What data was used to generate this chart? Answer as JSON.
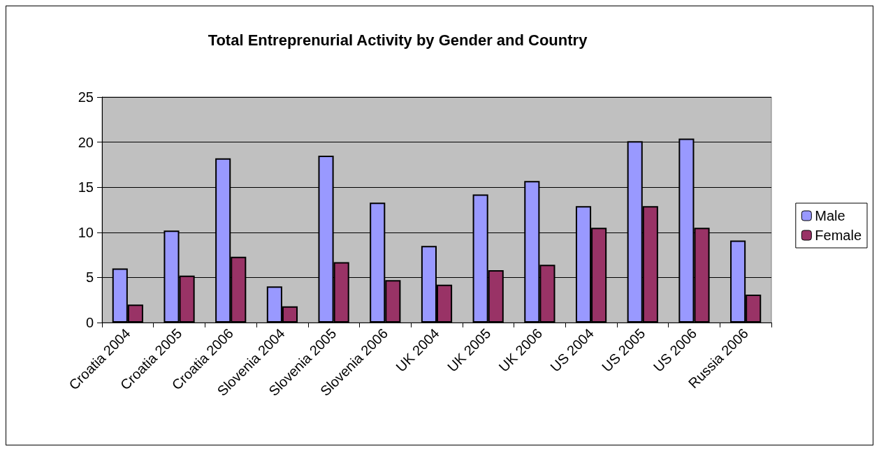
{
  "chart_data": {
    "type": "bar",
    "title": "Total Entreprenurial Activity by Gender and Country",
    "categories": [
      "Croatia 2004",
      "Croatia 2005",
      "Croatia 2006",
      "Slovenia 2004",
      "Slovenia 2005",
      "Slovenia 2006",
      "UK 2004",
      "UK 2005",
      "UK 2006",
      "US 2004",
      "US 2005",
      "US 2006",
      "Russia 2006"
    ],
    "series": [
      {
        "name": "Male",
        "color": "#9999ff",
        "values": [
          6.0,
          10.2,
          18.2,
          4.0,
          18.5,
          13.3,
          8.5,
          14.2,
          15.7,
          12.9,
          20.1,
          20.4,
          9.1
        ]
      },
      {
        "name": "Female",
        "color": "#993366",
        "values": [
          2.0,
          5.2,
          7.3,
          1.8,
          6.7,
          4.7,
          4.2,
          5.8,
          6.4,
          10.5,
          12.9,
          10.5,
          3.1
        ]
      }
    ],
    "ylim": [
      0,
      25
    ],
    "yticks": [
      0,
      5,
      10,
      15,
      20,
      25
    ],
    "grid": "y",
    "legend": "right"
  }
}
